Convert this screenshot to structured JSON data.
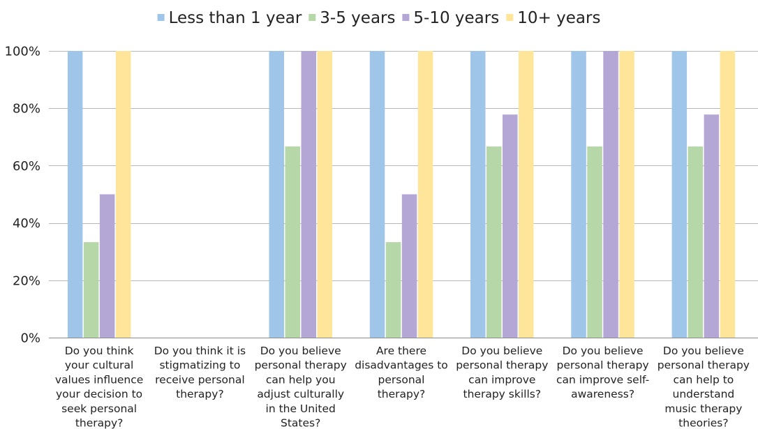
{
  "chart_data": {
    "type": "bar",
    "categories": [
      [
        "Do you think",
        "your cultural",
        "values influence",
        "your decision to",
        "seek personal",
        "therapy?"
      ],
      [
        "Do you think it is",
        "stigmatizing to",
        "receive personal",
        "therapy?"
      ],
      [
        "Do you believe",
        "personal therapy",
        "can help you",
        "adjust culturally",
        "in the United",
        "States?"
      ],
      [
        "Are there",
        "disadvantages to",
        "personal",
        "therapy?"
      ],
      [
        "Do you believe",
        "personal therapy",
        "can improve",
        "therapy skills?"
      ],
      [
        "Do you believe",
        "personal therapy",
        "can improve self-",
        "awareness?"
      ],
      [
        "Do you believe",
        "personal therapy",
        "can help to",
        "understand",
        "music therapy",
        "theories?"
      ]
    ],
    "series": [
      {
        "name": "Less than 1 year",
        "color": "#9fc5e8",
        "values": [
          100,
          0,
          100,
          100,
          100,
          100,
          100
        ]
      },
      {
        "name": "3-5 years",
        "color": "#b6d7a8",
        "values": [
          33.3,
          0,
          66.7,
          33.3,
          66.7,
          66.7,
          66.7
        ]
      },
      {
        "name": "5-10 years",
        "color": "#b4a7d6",
        "values": [
          50,
          0,
          100,
          50,
          77.8,
          100,
          77.8
        ]
      },
      {
        "name": "10+ years",
        "color": "#ffe599",
        "values": [
          100,
          0,
          100,
          100,
          100,
          100,
          100
        ]
      }
    ],
    "y_ticks": [
      "0%",
      "20%",
      "40%",
      "60%",
      "80%",
      "100%"
    ],
    "ylim": [
      0,
      100
    ],
    "grid": true,
    "legend_position": "top-center",
    "title": "",
    "xlabel": "",
    "ylabel": ""
  }
}
